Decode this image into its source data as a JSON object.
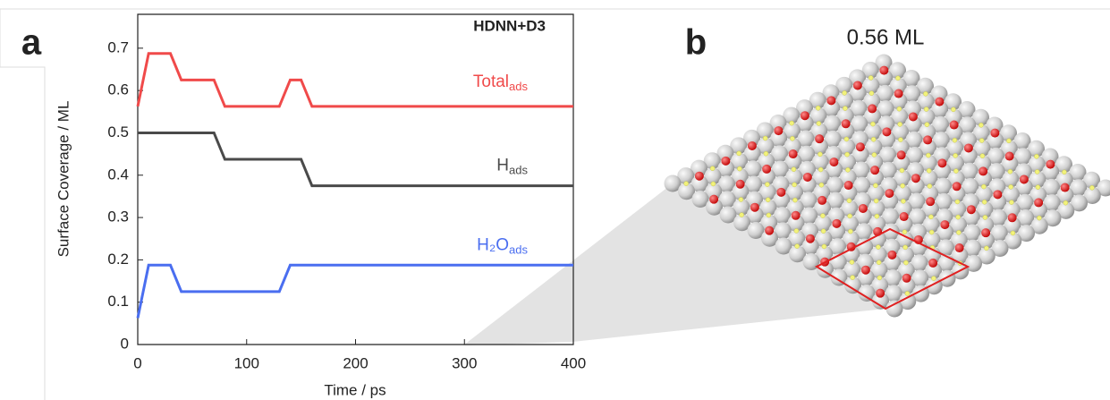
{
  "panel_labels": [
    "a",
    "b"
  ],
  "panel_b_title": "0.56 ML",
  "chart_data": {
    "type": "line",
    "annotation": "HDNN+D3",
    "x_label": "Time / ps",
    "y_label": "Surface Coverage / ML",
    "x": [
      0,
      10,
      30,
      40,
      70,
      80,
      130,
      140,
      150,
      160,
      400
    ],
    "series": [
      {
        "name": "Total",
        "subscript": "ads",
        "color": "#f04a4a",
        "values": [
          0.5625,
          0.6875,
          0.6875,
          0.625,
          0.625,
          0.5625,
          0.5625,
          0.625,
          0.625,
          0.5625,
          0.5625
        ]
      },
      {
        "name": "H",
        "subscript": "ads",
        "color": "#4a4a4a",
        "values": [
          0.5,
          0.5,
          0.5,
          0.5,
          0.5,
          0.4375,
          0.4375,
          0.4375,
          0.4375,
          0.375,
          0.375
        ]
      },
      {
        "name": "H₂O",
        "subscript": "ads",
        "color": "#4a6ef0",
        "values": [
          0.0625,
          0.1875,
          0.1875,
          0.125,
          0.125,
          0.125,
          0.125,
          0.1875,
          0.1875,
          0.1875,
          0.1875
        ]
      }
    ],
    "xlim": [
      0,
      400
    ],
    "xticks": [
      0,
      100,
      200,
      300,
      400
    ],
    "ylim": [
      0,
      0.78
    ],
    "yticks": [
      0,
      0.1,
      0.2,
      0.3,
      0.4,
      0.5,
      0.6,
      0.7
    ]
  }
}
